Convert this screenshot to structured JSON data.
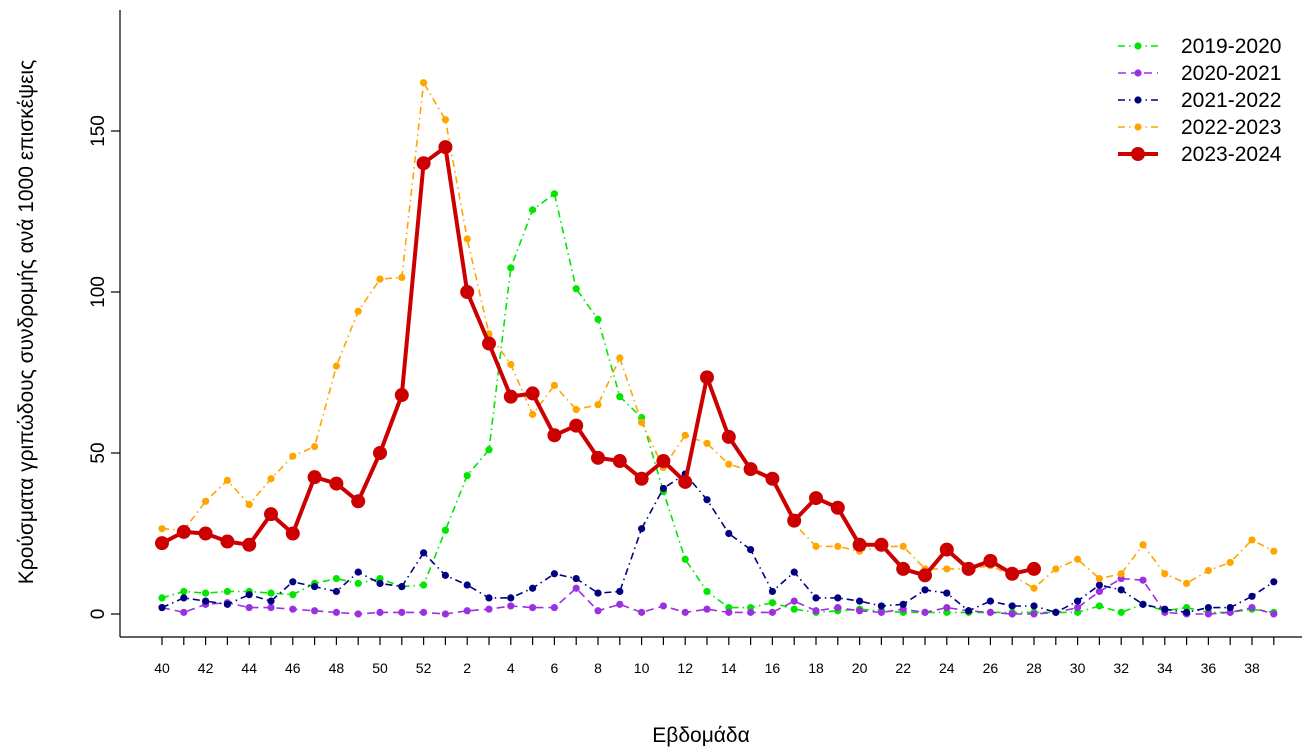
{
  "chart_data": {
    "type": "line",
    "xlabel": "Εβδομάδα",
    "ylabel": "Κρούσματα γριπώδους συνδρομής ανά 1000 επισκέψεις",
    "ylim": [
      0,
      180
    ],
    "yticks": [
      0,
      50,
      100,
      150
    ],
    "grid": false,
    "legend_position": "top-right",
    "categories": [
      "40",
      "41",
      "42",
      "43",
      "44",
      "45",
      "46",
      "47",
      "48",
      "49",
      "50",
      "51",
      "52",
      "1",
      "2",
      "3",
      "4",
      "5",
      "6",
      "7",
      "8",
      "9",
      "10",
      "11",
      "12",
      "13",
      "14",
      "15",
      "16",
      "17",
      "18",
      "19",
      "20",
      "21",
      "22",
      "23",
      "24",
      "25",
      "26",
      "27",
      "28",
      "29",
      "30",
      "31",
      "32",
      "33",
      "34",
      "35",
      "36",
      "37",
      "38",
      "39"
    ],
    "tick_labels": [
      "40",
      "",
      "42",
      "",
      "44",
      "",
      "46",
      "",
      "48",
      "",
      "50",
      "",
      "52",
      "",
      "2",
      "",
      "4",
      "",
      "6",
      "",
      "8",
      "",
      "10",
      "",
      "12",
      "",
      "14",
      "",
      "16",
      "",
      "18",
      "",
      "20",
      "",
      "22",
      "",
      "24",
      "",
      "26",
      "",
      "28",
      "",
      "30",
      "",
      "32",
      "",
      "34",
      "",
      "36",
      "",
      "38",
      ""
    ],
    "series": [
      {
        "name": "2019-2020",
        "color": "#00e600",
        "style": "dashdot",
        "highlight": false,
        "values": [
          5,
          7,
          6.5,
          7,
          7,
          6.5,
          6,
          9.5,
          11,
          9.5,
          11,
          8.5,
          9,
          26,
          43,
          51,
          107.5,
          125.5,
          130.5,
          101,
          91.5,
          67.5,
          61,
          38,
          17,
          7,
          2,
          2,
          3.5,
          1.5,
          0.5,
          1,
          1.5,
          1,
          0.5,
          0.5,
          0.5,
          0.5,
          0.5,
          0.5,
          0.5,
          0.5,
          0.5,
          2.5,
          0.5,
          3,
          1,
          2,
          0.5,
          0.5,
          1.5,
          0.5
        ]
      },
      {
        "name": "2020-2021",
        "color": "#9b30e0",
        "style": "dashed",
        "highlight": false,
        "values": [
          2,
          0.5,
          3,
          3.5,
          2,
          2,
          1.5,
          1,
          0.5,
          0,
          0.5,
          0.5,
          0.5,
          0,
          1,
          1.5,
          2.5,
          2,
          2,
          8,
          1,
          3,
          0.5,
          2.5,
          0.5,
          1.5,
          0.5,
          0.5,
          0.5,
          4,
          1,
          2,
          1,
          0.5,
          1.5,
          0.5,
          2,
          1,
          0.5,
          0,
          0,
          0.5,
          2,
          7,
          11,
          10.5,
          0.5,
          0,
          0,
          0.5,
          2,
          0
        ]
      },
      {
        "name": "2021-2022",
        "color": "#000080",
        "style": "dashdot",
        "highlight": false,
        "values": [
          2,
          5,
          4,
          3,
          6,
          4,
          10,
          8.5,
          7,
          13,
          9.5,
          8.5,
          19,
          12,
          9,
          5,
          5,
          8,
          12.5,
          11,
          6.5,
          7,
          26.5,
          39,
          43.5,
          35.5,
          25,
          20,
          7,
          13,
          5,
          5,
          4,
          2.5,
          3,
          7.5,
          6.5,
          1,
          4,
          2.5,
          2.5,
          0.5,
          4,
          9,
          7.5,
          3,
          1.5,
          0.5,
          2,
          2,
          5.5,
          10
        ]
      },
      {
        "name": "2022-2023",
        "color": "#ffa500",
        "style": "dashdot",
        "highlight": false,
        "values": [
          26.5,
          26,
          35,
          41.5,
          34,
          42,
          49,
          52,
          77,
          94,
          104,
          104.5,
          165,
          153.5,
          116.5,
          87,
          77.5,
          62,
          71,
          63.5,
          65,
          79.5,
          59.5,
          45.5,
          55.5,
          53,
          46.5,
          44.5,
          41.5,
          28,
          21,
          21,
          19.5,
          21,
          21,
          14,
          14,
          14,
          15,
          12,
          8,
          14,
          17,
          11,
          12.5,
          21.5,
          12.5,
          9.5,
          13.5,
          16,
          23,
          19.5
        ]
      },
      {
        "name": "2023-2024",
        "color": "#cc0000",
        "style": "solid",
        "highlight": true,
        "values": [
          22,
          25.5,
          25,
          22.5,
          21.5,
          31,
          25,
          42.5,
          40.5,
          35,
          50,
          68,
          140,
          145,
          100,
          84,
          67.5,
          68.5,
          55.5,
          58.5,
          48.5,
          47.5,
          42,
          47.5,
          41,
          73.5,
          55,
          45,
          42,
          29,
          36,
          33,
          21.5,
          21.5,
          14,
          12,
          20,
          14,
          16.5,
          12.5,
          14,
          null,
          null,
          null,
          null,
          null,
          null,
          null,
          null,
          null,
          null,
          null
        ]
      }
    ]
  }
}
